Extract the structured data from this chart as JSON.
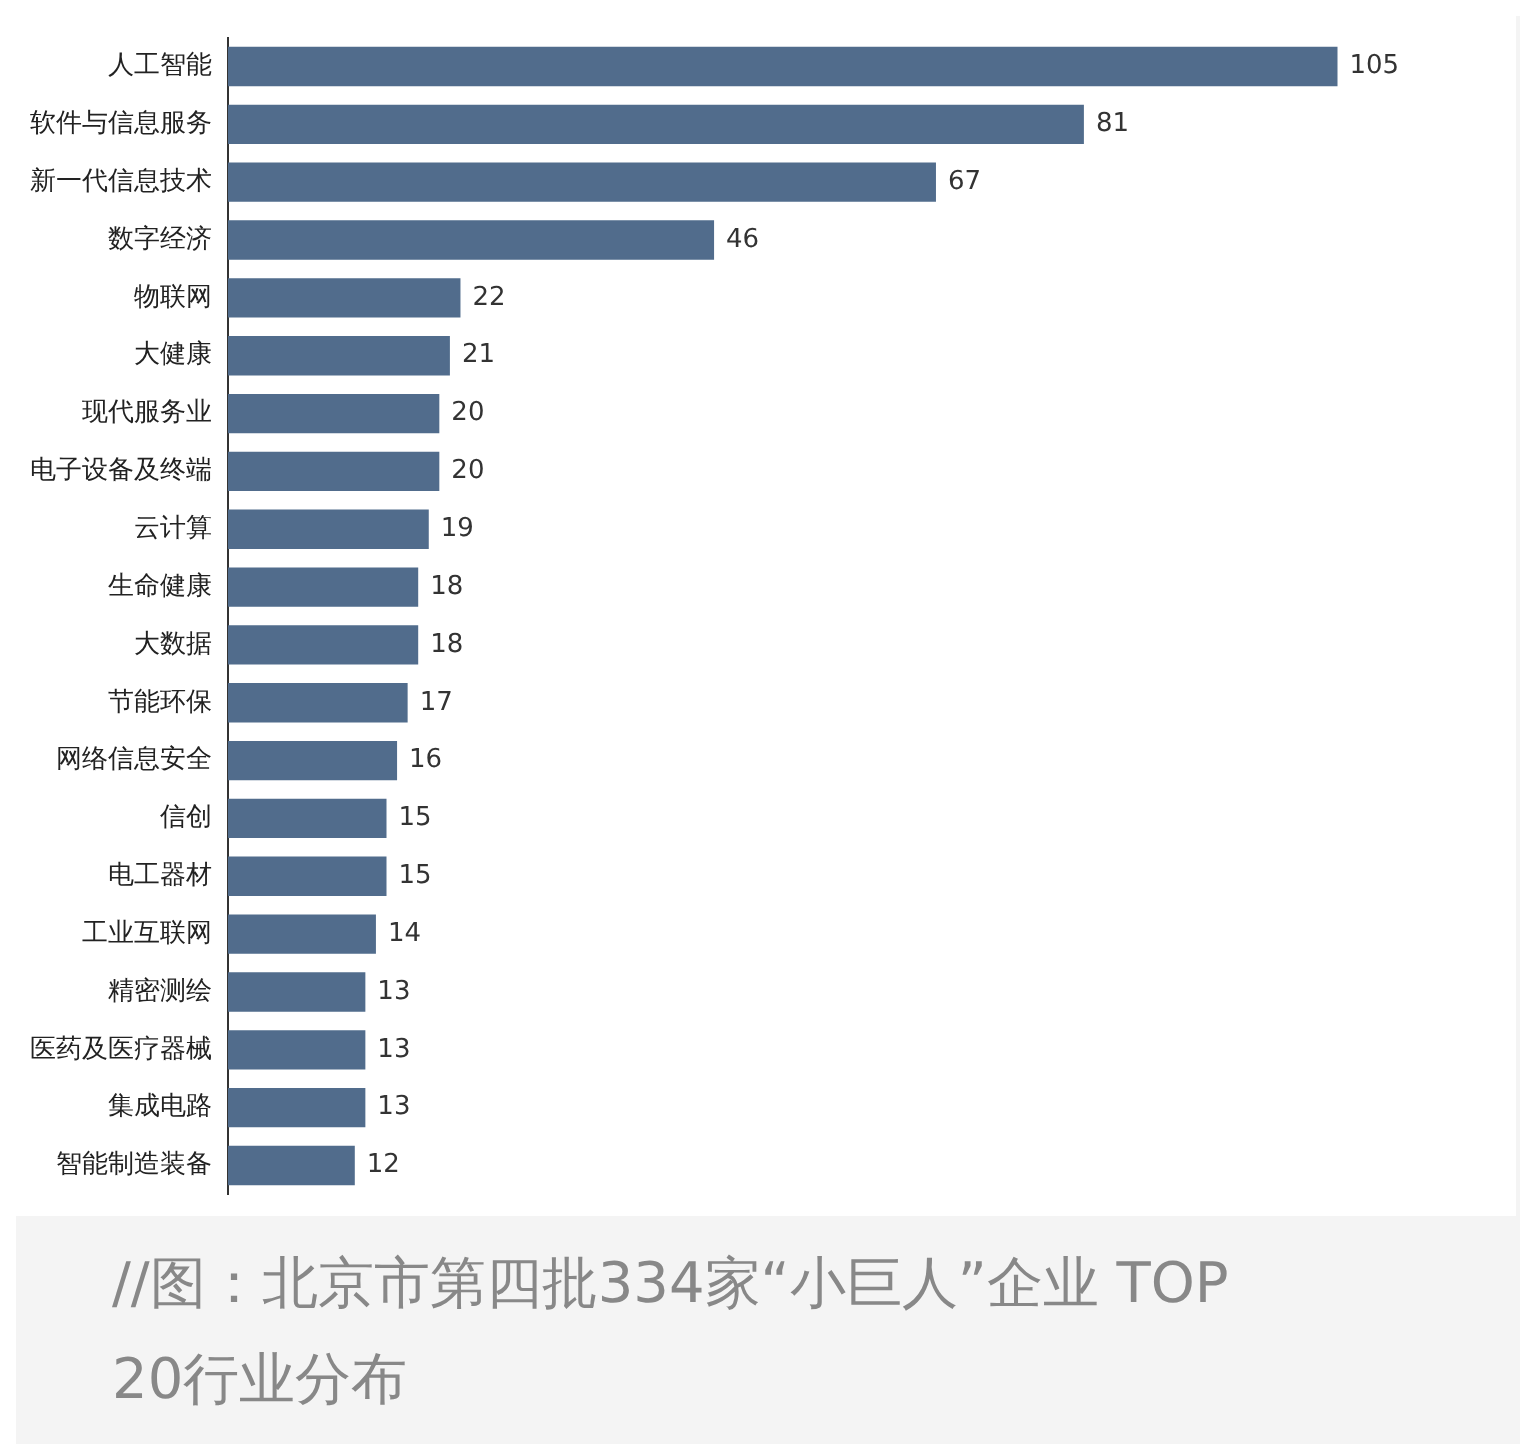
{
  "chart_data": {
    "type": "bar",
    "orientation": "horizontal",
    "categories": [
      "人工智能",
      "软件与信息服务",
      "新一代信息技术",
      "数字经济",
      "物联网",
      "大健康",
      "现代服务业",
      "电子设备及终端",
      "云计算",
      "生命健康",
      "大数据",
      "节能环保",
      "网络信息安全",
      "信创",
      "电工器材",
      "工业互联网",
      "精密测绘",
      "医药及医疗器械",
      "集成电路",
      "智能制造装备"
    ],
    "values": [
      105,
      81,
      67,
      46,
      22,
      21,
      20,
      20,
      19,
      18,
      18,
      17,
      16,
      15,
      15,
      14,
      13,
      13,
      13,
      12
    ],
    "color": "#516c8c",
    "data_labels": true,
    "legend": false,
    "annotations": [
      "//图：北京市第四批334家“小巨人”企业 TOP 20行业分布"
    ]
  }
}
